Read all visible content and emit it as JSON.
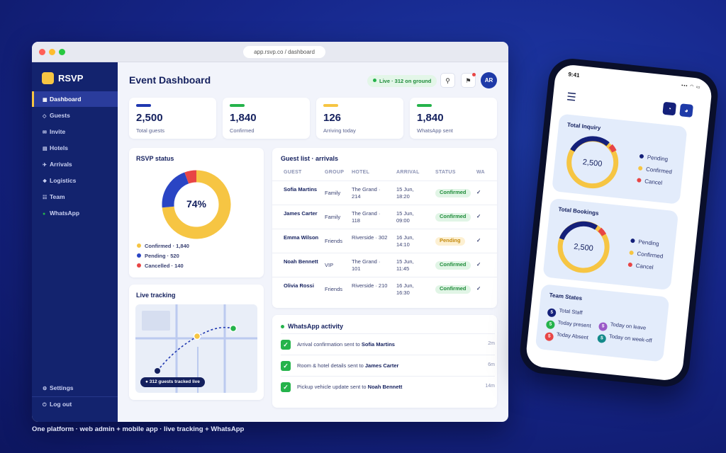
{
  "browser": {
    "url": "app.rsvp.co / dashboard"
  },
  "sidebar": {
    "brand": "RSVP",
    "items": [
      {
        "glyph": "▦",
        "label": "Dashboard",
        "active": true
      },
      {
        "glyph": "◇",
        "label": "Guests"
      },
      {
        "glyph": "✉",
        "label": "Invite"
      },
      {
        "glyph": "▤",
        "label": "Hotels"
      },
      {
        "glyph": "✈",
        "label": "Arrivals"
      },
      {
        "glyph": "❖",
        "label": "Logistics"
      },
      {
        "glyph": "☷",
        "label": "Team"
      },
      {
        "glyph": "●",
        "label": "WhatsApp"
      }
    ],
    "bottom": [
      {
        "glyph": "⚙",
        "label": "Settings"
      },
      {
        "glyph": "⏻",
        "label": "Log out"
      }
    ]
  },
  "header": {
    "title": "Event Dashboard",
    "live_badge": "Live · 312 on ground",
    "pin_icon": "pin-icon",
    "flag_icon": "flag-icon",
    "avatar": "AR"
  },
  "stats": [
    {
      "value": "2,500",
      "label": "Total guests",
      "color": "#2038b0"
    },
    {
      "value": "1,840",
      "label": "Confirmed",
      "color": "#25b34b"
    },
    {
      "value": "126",
      "label": "Arriving today",
      "color": "#f6c543"
    },
    {
      "value": "1,840",
      "label": "WhatsApp sent",
      "color": "#25b34b"
    }
  ],
  "rsvp": {
    "title": "RSVP status",
    "center": "74%",
    "legend": [
      {
        "label": "Confirmed · 1,840",
        "color": "#f6c543",
        "value": 1840
      },
      {
        "label": "Pending · 520",
        "color": "#2a45c4",
        "value": 520
      },
      {
        "label": "Cancelled · 140",
        "color": "#e84545",
        "value": 140
      }
    ]
  },
  "tracking": {
    "title": "Live tracking",
    "pill": "● 312 guests tracked live"
  },
  "guests": {
    "title": "Guest list · arrivals",
    "columns": [
      "GUEST",
      "GROUP",
      "HOTEL",
      "ARRIVAL",
      "STATUS",
      "WA"
    ],
    "rows": [
      {
        "name": "Sofia Martins",
        "group": "Family",
        "hotel": "The Grand · 214",
        "arrival": "15 Jun, 18:20",
        "status": "Confirmed",
        "wa": "✓"
      },
      {
        "name": "James Carter",
        "group": "Family",
        "hotel": "The Grand · 118",
        "arrival": "15 Jun, 09:00",
        "status": "Confirmed",
        "wa": "✓"
      },
      {
        "name": "Emma Wilson",
        "group": "Friends",
        "hotel": "Riverside · 302",
        "arrival": "16 Jun, 14:10",
        "status": "Pending",
        "wa": "✓"
      },
      {
        "name": "Noah Bennett",
        "group": "VIP",
        "hotel": "The Grand · 101",
        "arrival": "15 Jun, 11:45",
        "status": "Confirmed",
        "wa": "✓"
      },
      {
        "name": "Olivia Rossi",
        "group": "Friends",
        "hotel": "Riverside · 210",
        "arrival": "16 Jun, 16:30",
        "status": "Confirmed",
        "wa": "✓"
      }
    ]
  },
  "whatsapp": {
    "title": "WhatsApp activity",
    "items": [
      {
        "text": "Arrival confirmation sent to ",
        "who": "Sofia Martins",
        "time": "2m"
      },
      {
        "text": "Room & hotel details sent to ",
        "who": "James Carter",
        "time": "6m"
      },
      {
        "text": "Pickup vehicle update sent to ",
        "who": "Noah Bennett",
        "time": "14m"
      }
    ]
  },
  "caption": "One platform · web admin + mobile app · live tracking + WhatsApp",
  "phone": {
    "time": "9:41",
    "status_icons": "▪▪▪ ◠ ▭",
    "menu_icon": "☰",
    "bell_icon": "🔔",
    "user_icon": "👤",
    "inquiry": {
      "title": "Total Inquiry",
      "center": "2,500",
      "legend": [
        {
          "label": "Pending",
          "color": "#14207a"
        },
        {
          "label": "Confirmed",
          "color": "#f6c543"
        },
        {
          "label": "Cancel",
          "color": "#e84545"
        }
      ]
    },
    "bookings": {
      "title": "Total Bookings",
      "center": "2,500",
      "legend": [
        {
          "label": "Pending",
          "color": "#14207a"
        },
        {
          "label": "Confirmed",
          "color": "#f6c543"
        },
        {
          "label": "Cancel",
          "color": "#e84545"
        }
      ]
    },
    "team": {
      "title": "Team States",
      "items": [
        {
          "n": "5",
          "label": "Total Staff",
          "color": "#14207a"
        },
        {
          "n": "5",
          "label": "Today present",
          "color": "#25b34b"
        },
        {
          "n": "5",
          "label": "Today Absent",
          "color": "#e84545"
        },
        {
          "n": "5",
          "label": "Today on leave",
          "color": "#9b59c8"
        },
        {
          "n": "5",
          "label": "Today on week-off",
          "color": "#148a8a"
        }
      ]
    }
  }
}
